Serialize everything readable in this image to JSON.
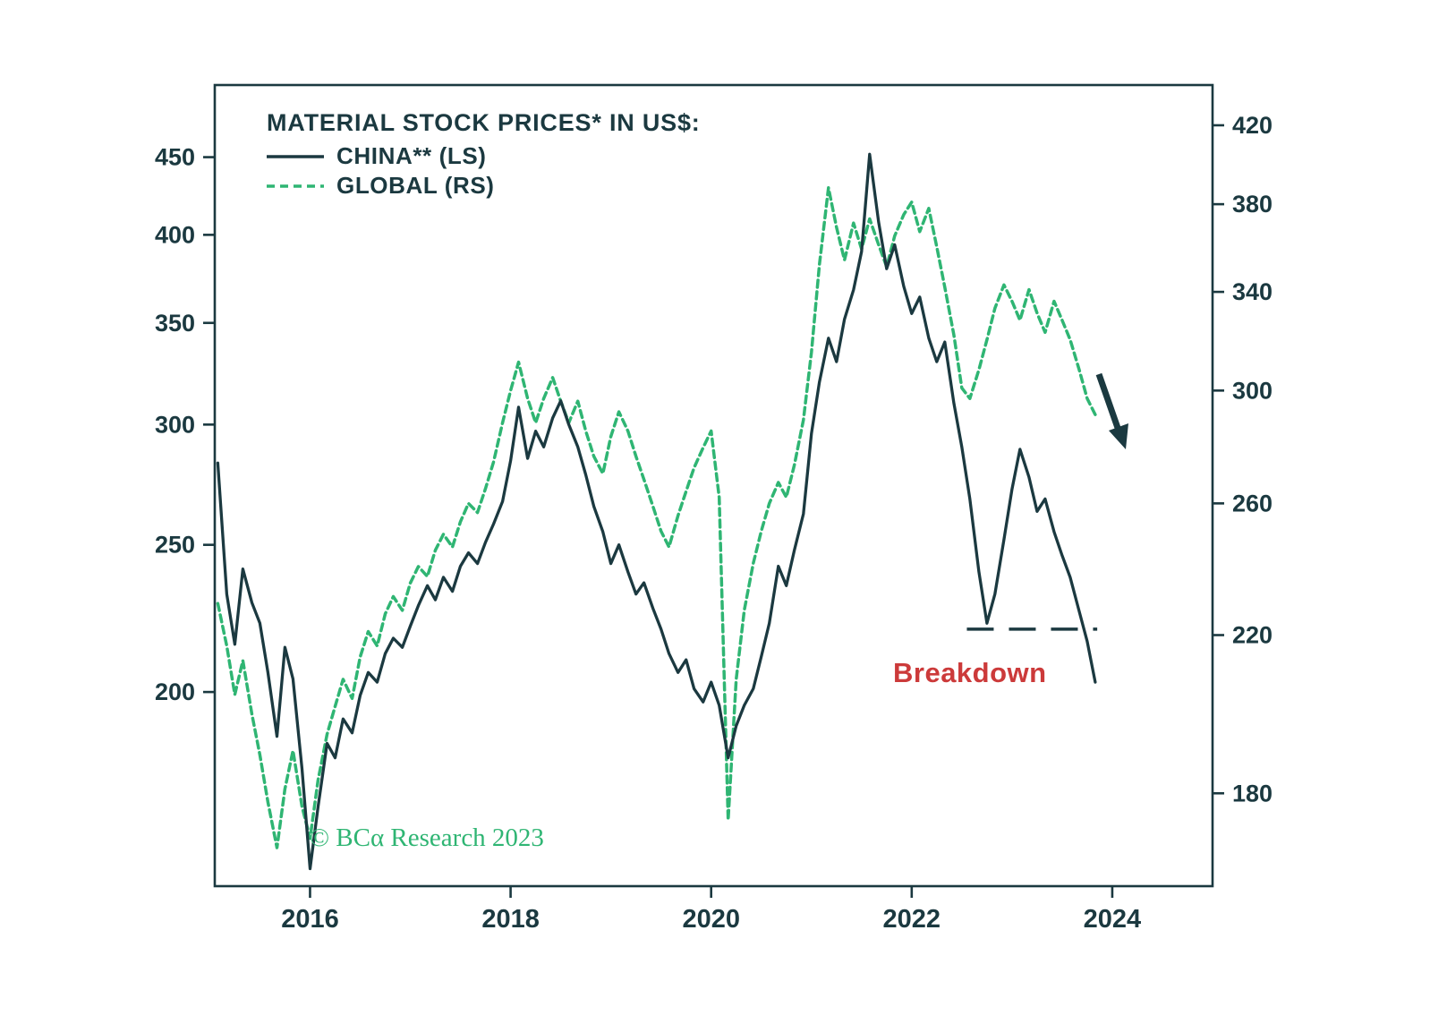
{
  "colors": {
    "ink": "#1b3940",
    "green": "#2fb573",
    "red": "#cc3a3a",
    "background": "#ffffff"
  },
  "chart_data": {
    "type": "line",
    "title": "MATERIAL STOCK PRICES* IN US$:",
    "source_note": "© BCα Research 2023",
    "annotations": {
      "breakdown_label": "Breakdown",
      "arrow": "down-right arrow after last GLOBAL data point"
    },
    "legend": [
      {
        "name": "CHINA** (LS)",
        "style": "solid",
        "axis": "left"
      },
      {
        "name": "GLOBAL (RS)",
        "style": "dashed",
        "axis": "right"
      }
    ],
    "legend_position": "top-left",
    "grid": false,
    "x_axis": {
      "ticks": [
        2016,
        2018,
        2020,
        2022,
        2024
      ],
      "range": [
        2015.05,
        2025.0
      ]
    },
    "left_axis": {
      "scale": "log",
      "ticks": [
        450,
        400,
        350,
        300,
        250,
        200
      ],
      "range": [
        149,
        502
      ]
    },
    "right_axis": {
      "scale": "log",
      "ticks": [
        420,
        380,
        340,
        300,
        260,
        220,
        180
      ],
      "range": [
        160,
        442
      ]
    },
    "support_line": {
      "axis": "left",
      "value": 220,
      "x_start": 2022.55,
      "x_end": 2023.85,
      "style": "dashed"
    },
    "x": [
      2015.08,
      2015.17,
      2015.25,
      2015.33,
      2015.42,
      2015.5,
      2015.58,
      2015.67,
      2015.75,
      2015.83,
      2015.92,
      2016,
      2016.08,
      2016.17,
      2016.25,
      2016.33,
      2016.42,
      2016.5,
      2016.58,
      2016.67,
      2016.75,
      2016.83,
      2016.92,
      2017,
      2017.08,
      2017.17,
      2017.25,
      2017.33,
      2017.42,
      2017.5,
      2017.58,
      2017.67,
      2017.75,
      2017.83,
      2017.92,
      2018,
      2018.08,
      2018.17,
      2018.25,
      2018.33,
      2018.42,
      2018.5,
      2018.58,
      2018.67,
      2018.75,
      2018.83,
      2018.92,
      2019,
      2019.08,
      2019.17,
      2019.25,
      2019.33,
      2019.42,
      2019.5,
      2019.58,
      2019.67,
      2019.75,
      2019.83,
      2019.92,
      2020,
      2020.08,
      2020.17,
      2020.25,
      2020.33,
      2020.42,
      2020.5,
      2020.58,
      2020.67,
      2020.75,
      2020.83,
      2020.92,
      2021,
      2021.08,
      2021.17,
      2021.25,
      2021.33,
      2021.42,
      2021.5,
      2021.58,
      2021.67,
      2021.75,
      2021.83,
      2021.92,
      2022,
      2022.08,
      2022.17,
      2022.25,
      2022.33,
      2022.42,
      2022.5,
      2022.58,
      2022.67,
      2022.75,
      2022.83,
      2022.92,
      2023,
      2023.08,
      2023.17,
      2023.25,
      2023.33,
      2023.42,
      2023.5,
      2023.58,
      2023.67,
      2023.75,
      2023.83
    ],
    "series": [
      {
        "name": "CHINA** (LS)",
        "axis": "left",
        "values": [
          283,
          232,
          215,
          241,
          229,
          222,
          206,
          187,
          214,
          204,
          178,
          153,
          168,
          185,
          181,
          192,
          188,
          199,
          206,
          203,
          212,
          217,
          214,
          221,
          228,
          235,
          230,
          238,
          233,
          242,
          247,
          243,
          251,
          258,
          267,
          284,
          308,
          285,
          297,
          290,
          303,
          311,
          300,
          290,
          278,
          265,
          255,
          243,
          250,
          240,
          232,
          236,
          227,
          220,
          212,
          206,
          210,
          201,
          197,
          203,
          196,
          181,
          190,
          196,
          201,
          211,
          222,
          242,
          235,
          248,
          262,
          296,
          320,
          342,
          330,
          352,
          368,
          390,
          452,
          408,
          380,
          394,
          370,
          355,
          364,
          342,
          330,
          340,
          310,
          290,
          268,
          240,
          222,
          232,
          252,
          272,
          289,
          277,
          263,
          268,
          255,
          246,
          238,
          226,
          216,
          203
        ]
      },
      {
        "name": "GLOBAL (RS)",
        "axis": "right",
        "values": [
          229,
          217,
          204,
          213,
          199,
          189,
          178,
          168,
          181,
          190,
          177,
          170,
          183,
          194,
          201,
          208,
          203,
          214,
          221,
          217,
          226,
          231,
          227,
          235,
          240,
          237,
          245,
          250,
          246,
          254,
          260,
          257,
          265,
          274,
          288,
          300,
          311,
          297,
          288,
          297,
          305,
          296,
          288,
          296,
          285,
          276,
          270,
          283,
          292,
          285,
          276,
          268,
          259,
          251,
          246,
          256,
          264,
          272,
          279,
          285,
          262,
          174,
          208,
          227,
          241,
          251,
          260,
          267,
          262,
          273,
          289,
          315,
          352,
          388,
          369,
          354,
          371,
          359,
          373,
          361,
          351,
          365,
          375,
          381,
          367,
          378,
          360,
          342,
          322,
          301,
          297,
          308,
          320,
          333,
          343,
          336,
          328,
          341,
          331,
          323,
          336,
          328,
          320,
          308,
          297,
          291
        ]
      }
    ]
  }
}
